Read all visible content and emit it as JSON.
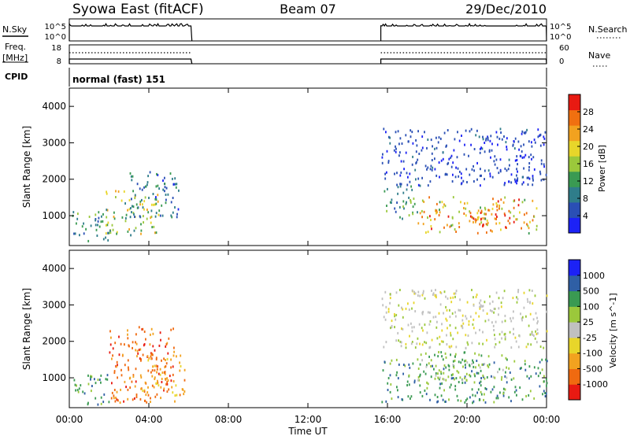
{
  "header": {
    "station": "Syowa East (fitACF)",
    "beam": "Beam 07",
    "date": "29/Dec/2010"
  },
  "top_panels": {
    "nsky_label": "N.Sky",
    "nsky_ticks": [
      "10^5",
      "10^0"
    ],
    "nsearch_label": "N.Search",
    "nsearch_ticks": [
      "10^5",
      "10^0"
    ],
    "freq_label": "Freq.",
    "freq_unit": "[MHz]",
    "freq_ticks": [
      "18",
      "8"
    ],
    "nave_label": "Nave",
    "nave_ticks": [
      "60",
      "0"
    ],
    "cpid_label": "CPID",
    "cpid_value": "normal (fast) 151"
  },
  "xaxis": {
    "label": "Time UT",
    "ticks": [
      "00:00",
      "04:00",
      "08:00",
      "12:00",
      "16:00",
      "20:00",
      "00:00"
    ]
  },
  "colors": {
    "power": [
      "#1c22f6",
      "#2a4fb5",
      "#2f7d8a",
      "#3a9a52",
      "#9bc83b",
      "#e8d62a",
      "#f2a21f",
      "#f07010",
      "#e81a12"
    ],
    "velocity": [
      "#e81a12",
      "#f06a10",
      "#f2a21f",
      "#e8d62a",
      "#c0c0c0",
      "#9bc83b",
      "#3a9a52",
      "#2f5fa5",
      "#1c22f6"
    ]
  },
  "chart_data": [
    {
      "type": "heatmap",
      "title": "",
      "ylabel": "Slant Range [km]",
      "ylim": [
        180,
        4500
      ],
      "yticks": [
        "1000",
        "2000",
        "3000",
        "4000"
      ],
      "xlim_hours": [
        0,
        24
      ],
      "colorbar": {
        "label": "Power [dB]",
        "ticks": [
          "28",
          "24",
          "20",
          "16",
          "12",
          "8",
          "4"
        ],
        "range": [
          0,
          30
        ]
      },
      "data_intervals_ut": [
        [
          "00:00",
          "06:10"
        ],
        [
          "15:40",
          "24:00"
        ]
      ],
      "regions": [
        {
          "t": [
            0.1,
            2.0
          ],
          "r": [
            250,
            1100
          ],
          "v": [
            6,
            14
          ]
        },
        {
          "t": [
            1.8,
            4.5
          ],
          "r": [
            450,
            1700
          ],
          "v": [
            8,
            24
          ]
        },
        {
          "t": [
            3.0,
            5.5
          ],
          "r": [
            900,
            2200
          ],
          "v": [
            3,
            12
          ]
        },
        {
          "t": [
            15.7,
            17.5
          ],
          "r": [
            900,
            1800
          ],
          "v": [
            5,
            16
          ]
        },
        {
          "t": [
            15.7,
            24.0
          ],
          "r": [
            1800,
            3400
          ],
          "v": [
            2,
            7
          ]
        },
        {
          "t": [
            17.5,
            23.5
          ],
          "r": [
            500,
            1500
          ],
          "v": [
            12,
            28
          ]
        },
        {
          "t": [
            20.0,
            22.5
          ],
          "r": [
            700,
            1200
          ],
          "v": [
            22,
            30
          ]
        }
      ]
    },
    {
      "type": "heatmap",
      "title": "",
      "ylabel": "Slant Range [km]",
      "ylim": [
        180,
        4500
      ],
      "yticks": [
        "1000",
        "2000",
        "3000",
        "4000"
      ],
      "xlim_hours": [
        0,
        24
      ],
      "colorbar": {
        "label": "Velocity [m s^-1]",
        "ticks": [
          "1000",
          "500",
          "100",
          "25",
          "-25",
          "-100",
          "-500",
          "-1000"
        ]
      },
      "data_intervals_ut": [
        [
          "00:00",
          "06:10"
        ],
        [
          "15:40",
          "24:00"
        ]
      ],
      "regions": [
        {
          "t": [
            0.1,
            2.0
          ],
          "r": [
            250,
            1100
          ],
          "c": 6
        },
        {
          "t": [
            2.0,
            5.3
          ],
          "r": [
            300,
            2400
          ],
          "c": 1
        },
        {
          "t": [
            3.5,
            5.8
          ],
          "r": [
            500,
            1700
          ],
          "c": 2
        },
        {
          "t": [
            15.7,
            24.0
          ],
          "r": [
            1800,
            3400
          ],
          "c": 4
        },
        {
          "t": [
            15.7,
            24.0
          ],
          "r": [
            300,
            1500
          ],
          "c": 6
        },
        {
          "t": [
            17.5,
            22.0
          ],
          "r": [
            900,
            1700
          ],
          "c": 5
        }
      ]
    }
  ]
}
